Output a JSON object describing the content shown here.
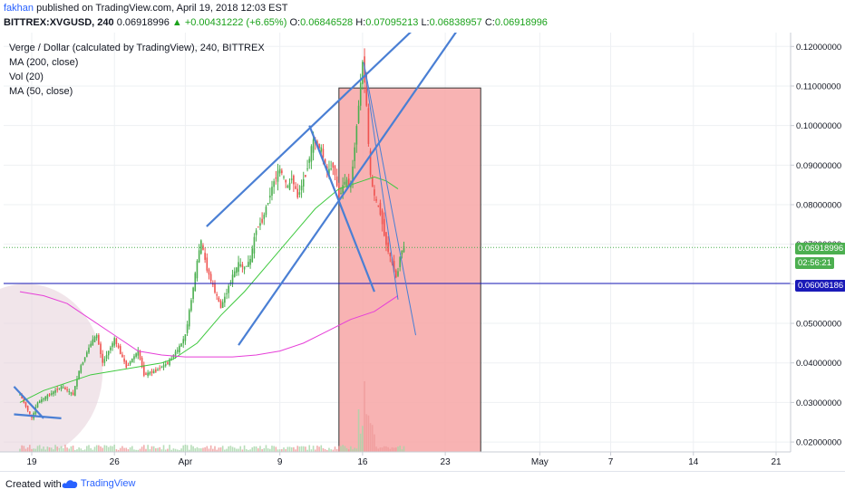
{
  "header": {
    "author": "fakhan",
    "published_text": "published on TradingView.com, April 19, 2018 12:03 EST",
    "symbol": "BITTREX:XVGUSD, 240",
    "last_price": "0.06918996",
    "change": "▲ +0.00431222 (+6.65%)",
    "open_label": "O:",
    "open": "0.06846528",
    "high_label": "H:",
    "high": "0.07095213",
    "low_label": "L:",
    "low": "0.06838957",
    "close_label": "C:",
    "close": "0.06918996"
  },
  "legend": {
    "title": "Verge / Dollar (calculated by TradingView), 240, BITTREX",
    "ma200": "MA (200, close)",
    "vol": "Vol (20)",
    "ma50": "MA (50, close)"
  },
  "price_badges": {
    "last": "0.06918996",
    "countdown": "02:56:21",
    "hline": "0.06008186"
  },
  "footer": {
    "created_with": "Created with",
    "brand": "TradingView"
  },
  "colors": {
    "up": "#4caf50",
    "down": "#ef5350",
    "ma50": "#3fc93f",
    "ma200": "#e63fd8",
    "trend": "#4a7fd4",
    "hline": "#1a1ab8",
    "box_fill": "#f7a6a6",
    "accent": "#2962ff"
  },
  "chart_data": {
    "type": "candlestick",
    "title": "Verge / Dollar (calculated by TradingView), 240, BITTREX",
    "xlabel": "",
    "ylabel": "",
    "ylim": [
      0.0175,
      0.1235
    ],
    "y_ticks": [
      0.02,
      0.03,
      0.04,
      0.05,
      0.06,
      0.07,
      0.08,
      0.09,
      0.1,
      0.11,
      0.12
    ],
    "y_tick_labels": [
      "0.02000000",
      "0.03000000",
      "0.04000000",
      "0.05000000",
      "0.06000000",
      "0.07000000",
      "0.08000000",
      "0.09000000",
      "0.10000000",
      "0.11000000",
      "0.12000000"
    ],
    "x_ticks": [
      {
        "label": "19",
        "day": 19
      },
      {
        "label": "26",
        "day": 26
      },
      {
        "label": "Apr",
        "day": 32
      },
      {
        "label": "9",
        "day": 40
      },
      {
        "label": "16",
        "day": 47
      },
      {
        "label": "23",
        "day": 54
      },
      {
        "label": "May",
        "day": 62
      },
      {
        "label": "7",
        "day": 68
      },
      {
        "label": "14",
        "day": 75
      },
      {
        "label": "21",
        "day": 82
      }
    ],
    "grid": true,
    "price_path_days": [
      18.0,
      19.0,
      19.5,
      20.5,
      21.5,
      22.5,
      23.0,
      24.0,
      24.5,
      25.0,
      26.0,
      27.0,
      28.0,
      28.5,
      29.5,
      30.5,
      31.5,
      32.0,
      32.5,
      33.3,
      33.8,
      34.5,
      35.0,
      36.0,
      36.5,
      37.0,
      37.5,
      38.0,
      38.5,
      39.5,
      40.0,
      40.7,
      41.0,
      41.5,
      42.2,
      42.8,
      43.5,
      44.0,
      44.5,
      45.0,
      45.5,
      46.0,
      46.5,
      47.0,
      47.3,
      47.6,
      48.0,
      48.5,
      49.0,
      49.5,
      49.9,
      50.2,
      50.5
    ],
    "price_path_values": [
      0.032,
      0.026,
      0.03,
      0.032,
      0.034,
      0.032,
      0.038,
      0.045,
      0.047,
      0.04,
      0.046,
      0.039,
      0.043,
      0.037,
      0.038,
      0.04,
      0.044,
      0.047,
      0.056,
      0.071,
      0.064,
      0.058,
      0.054,
      0.062,
      0.065,
      0.064,
      0.066,
      0.074,
      0.076,
      0.086,
      0.089,
      0.084,
      0.087,
      0.082,
      0.088,
      0.096,
      0.094,
      0.088,
      0.09,
      0.082,
      0.086,
      0.085,
      0.1,
      0.116,
      0.108,
      0.088,
      0.082,
      0.078,
      0.07,
      0.065,
      0.061,
      0.068,
      0.0692
    ],
    "series": [
      {
        "name": "MA (50, close)",
        "x": [
          18,
          20,
          22,
          24,
          26,
          28,
          30,
          31,
          33,
          35,
          37,
          39,
          41,
          43,
          45,
          47,
          48,
          49,
          50
        ],
        "y": [
          0.03,
          0.033,
          0.035,
          0.037,
          0.038,
          0.039,
          0.04,
          0.041,
          0.045,
          0.052,
          0.058,
          0.065,
          0.072,
          0.079,
          0.084,
          0.086,
          0.087,
          0.086,
          0.084
        ]
      },
      {
        "name": "MA (200, close)",
        "x": [
          18,
          20,
          22,
          24,
          26,
          28,
          30,
          32,
          34,
          36,
          38,
          40,
          42,
          44,
          46,
          48,
          49,
          50
        ],
        "y": [
          0.058,
          0.057,
          0.055,
          0.051,
          0.047,
          0.043,
          0.042,
          0.0415,
          0.0415,
          0.0415,
          0.042,
          0.043,
          0.045,
          0.048,
          0.051,
          0.053,
          0.055,
          0.057
        ]
      },
      {
        "name": "Vol (20)"
      }
    ],
    "horizontal_line": 0.06008186,
    "last_price_line": 0.06918996,
    "rectangle": {
      "x_start": 45.0,
      "x_end": 57.0,
      "y_top": 0.1095,
      "y_bottom": 0.0175
    },
    "trendlines": [
      {
        "x1": 33.8,
        "y1": 0.0745,
        "x2": 51.2,
        "y2": 0.124
      },
      {
        "x1": 36.5,
        "y1": 0.0445,
        "x2": 55.0,
        "y2": 0.124
      },
      {
        "x1": 42.5,
        "y1": 0.1,
        "x2": 48.0,
        "y2": 0.058
      },
      {
        "x1": 47.1,
        "y1": 0.116,
        "x2": 51.5,
        "y2": 0.047
      },
      {
        "x1": 47.1,
        "y1": 0.116,
        "x2": 50.0,
        "y2": 0.056
      },
      {
        "x1": 17.5,
        "y1": 0.034,
        "x2": 20.0,
        "y2": 0.026
      },
      {
        "x1": 17.5,
        "y1": 0.027,
        "x2": 21.5,
        "y2": 0.026
      }
    ],
    "circle": {
      "cx": 18.5,
      "cy": 0.038,
      "rx_days": 6.5,
      "ry": 0.022
    }
  }
}
